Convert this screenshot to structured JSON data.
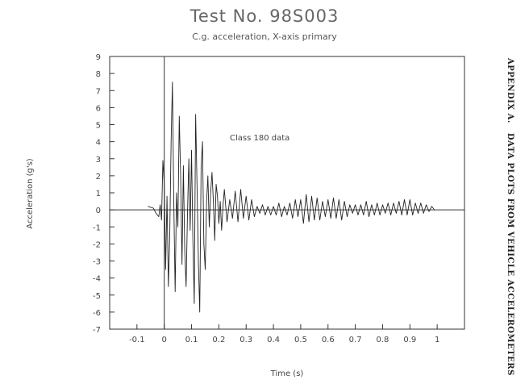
{
  "page": {
    "title": "Test No. 98S003",
    "subtitle": "C.g. acceleration, X-axis primary",
    "side_label": "APPENDIX A.   DATA PLOTS FROM VEHICLE ACCELEROMETERS"
  },
  "chart_data": {
    "type": "line",
    "title": "Test No. 98S003",
    "subtitle": "C.g. acceleration, X-axis primary",
    "xlabel": "Time (s)",
    "ylabel": "Acceleration (g's)",
    "xlim": [
      -0.2,
      1.1
    ],
    "ylim": [
      -7,
      9
    ],
    "xticks": [
      -0.1,
      0,
      0.1,
      0.2,
      0.3,
      0.4,
      0.5,
      0.6,
      0.7,
      0.8,
      0.9,
      1
    ],
    "xtick_labels": [
      "-0.1",
      "0",
      "0.1",
      "0.2",
      "0.3",
      "0.4",
      "0.5",
      "0.6",
      "0.7",
      "0.8",
      "0.9",
      "1"
    ],
    "yticks": [
      -7,
      -6,
      -5,
      -4,
      -3,
      -2,
      -1,
      0,
      1,
      2,
      3,
      4,
      5,
      6,
      7,
      8,
      9
    ],
    "ytick_labels": [
      "-7",
      "-6",
      "-5",
      "-4",
      "-3",
      "-2",
      "-1",
      "0",
      "1",
      "2",
      "3",
      "4",
      "5",
      "6",
      "7",
      "8",
      "9"
    ],
    "grid": false,
    "zero_lines": true,
    "annotation": "Class 180 data",
    "series": [
      {
        "color": "#222222",
        "x": [
          -0.06,
          -0.04,
          -0.03,
          -0.02,
          -0.015,
          -0.01,
          -0.005,
          0,
          0.005,
          0.01,
          0.015,
          0.02,
          0.025,
          0.03,
          0.035,
          0.04,
          0.045,
          0.05,
          0.055,
          0.06,
          0.065,
          0.07,
          0.075,
          0.08,
          0.085,
          0.09,
          0.095,
          0.1,
          0.105,
          0.11,
          0.115,
          0.12,
          0.125,
          0.13,
          0.135,
          0.14,
          0.145,
          0.15,
          0.155,
          0.16,
          0.165,
          0.17,
          0.175,
          0.18,
          0.185,
          0.19,
          0.195,
          0.2,
          0.205,
          0.21,
          0.215,
          0.22,
          0.23,
          0.24,
          0.25,
          0.26,
          0.27,
          0.28,
          0.29,
          0.3,
          0.31,
          0.32,
          0.33,
          0.34,
          0.35,
          0.36,
          0.37,
          0.38,
          0.39,
          0.4,
          0.41,
          0.42,
          0.43,
          0.44,
          0.45,
          0.46,
          0.47,
          0.48,
          0.49,
          0.5,
          0.51,
          0.52,
          0.53,
          0.54,
          0.55,
          0.56,
          0.57,
          0.58,
          0.59,
          0.6,
          0.61,
          0.62,
          0.63,
          0.64,
          0.65,
          0.66,
          0.67,
          0.68,
          0.69,
          0.7,
          0.71,
          0.72,
          0.73,
          0.74,
          0.75,
          0.76,
          0.77,
          0.78,
          0.79,
          0.8,
          0.81,
          0.82,
          0.83,
          0.84,
          0.85,
          0.86,
          0.87,
          0.88,
          0.89,
          0.9,
          0.91,
          0.92,
          0.93,
          0.94,
          0.95,
          0.96,
          0.97,
          0.98,
          0.99
        ],
        "y": [
          0.2,
          0.1,
          -0.2,
          -0.4,
          0.3,
          -0.6,
          2.9,
          1.5,
          -3.5,
          0.8,
          -4.5,
          -1.5,
          4,
          7.5,
          0.5,
          -4.8,
          1,
          -1,
          5.5,
          2,
          -3.2,
          2.6,
          -2.4,
          -4.5,
          -0.2,
          3,
          -1.2,
          3.5,
          -1.8,
          -5.5,
          5.6,
          1.5,
          -3,
          -6,
          2.5,
          4,
          -2,
          -3.5,
          0.5,
          2,
          -1,
          1,
          2.2,
          0.5,
          -1.8,
          1.5,
          0.8,
          -0.8,
          0.5,
          -1.2,
          0.2,
          1.2,
          -0.7,
          0.6,
          -0.5,
          1.1,
          -0.7,
          1.2,
          -0.5,
          0.8,
          -0.6,
          0.6,
          -0.4,
          0.2,
          -0.2,
          0.3,
          -0.3,
          0.2,
          -0.3,
          0.2,
          -0.3,
          0.4,
          -0.4,
          0.2,
          -0.3,
          0.4,
          -0.5,
          0.6,
          -0.4,
          0.6,
          -0.8,
          0.9,
          -0.7,
          0.8,
          -0.6,
          0.7,
          -0.6,
          0.5,
          -0.4,
          0.6,
          -0.5,
          0.7,
          -0.5,
          0.6,
          -0.6,
          0.5,
          -0.4,
          0.3,
          -0.2,
          0.3,
          -0.3,
          0.3,
          -0.3,
          0.5,
          -0.4,
          0.3,
          -0.3,
          0.4,
          -0.3,
          0.3,
          -0.2,
          0.4,
          -0.3,
          0.4,
          -0.2,
          0.5,
          -0.3,
          0.6,
          -0.3,
          0.6,
          -0.3,
          0.4,
          -0.2,
          0.4,
          -0.2,
          0.3,
          -0.1,
          0.2,
          0
        ]
      }
    ]
  }
}
